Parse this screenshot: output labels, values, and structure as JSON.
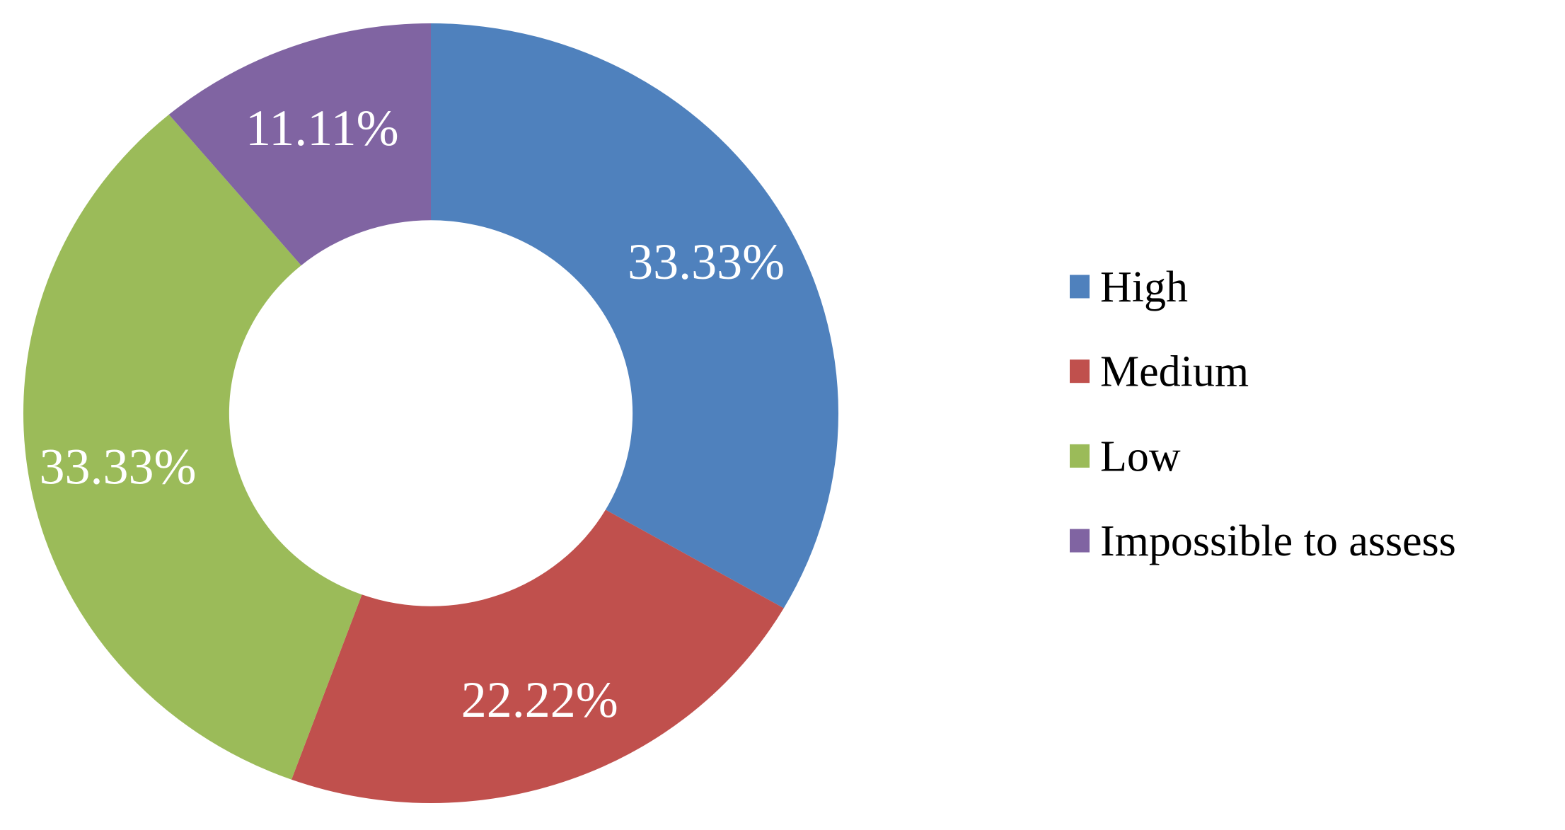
{
  "figure": {
    "background_color": "#FFFFFF",
    "description": "Donut chart with four segments and a legend on the right"
  },
  "chart_data": {
    "type": "pie",
    "subtype": "donut",
    "title": "",
    "categories": [
      "High",
      "Medium",
      "Low",
      "Impossible to assess"
    ],
    "values": [
      33.33,
      22.22,
      33.33,
      11.11
    ],
    "labels": [
      "33.33%",
      "22.22%",
      "33.33%",
      "11.11%"
    ],
    "colors": [
      "#4F81BD",
      "#C0504D",
      "#9BBB59",
      "#8064A2"
    ],
    "start_angle_deg": 0,
    "direction": "clockwise",
    "hole_ratio": 0.495,
    "data_label_color": "#FFFFFF",
    "legend": {
      "position": "right",
      "entries": [
        {
          "label": "High",
          "color": "#4F81BD"
        },
        {
          "label": "Medium",
          "color": "#C0504D"
        },
        {
          "label": "Low",
          "color": "#9BBB59"
        },
        {
          "label": "Impossible to assess",
          "color": "#8064A2"
        }
      ]
    }
  }
}
